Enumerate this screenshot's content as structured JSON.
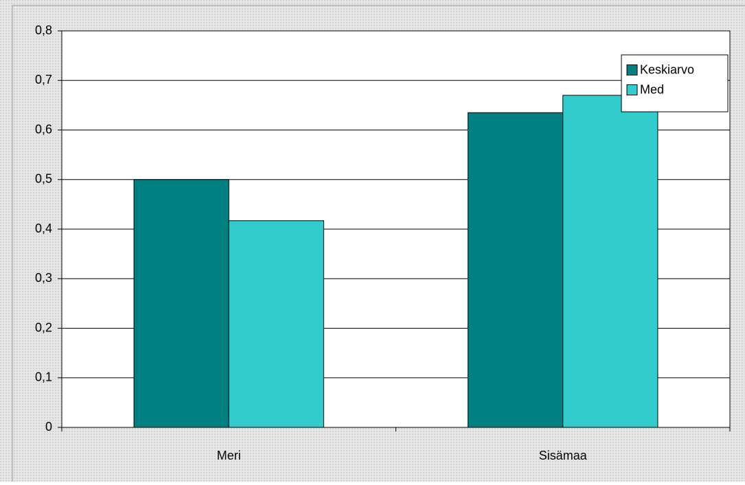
{
  "chart_data": {
    "type": "bar",
    "categories": [
      "Meri",
      "Sisämaa"
    ],
    "series": [
      {
        "name": "Keskiarvo",
        "color": "#008080",
        "values": [
          0.5,
          0.635
        ]
      },
      {
        "name": "Med",
        "color": "#33cccc",
        "values": [
          0.417,
          0.67
        ]
      }
    ],
    "ylim": [
      0,
      0.8
    ],
    "yticks": [
      0,
      {
        "value": 0.1,
        "label": "0,1"
      },
      {
        "value": 0.2,
        "label": "0,2"
      },
      {
        "value": 0.3,
        "label": "0,3"
      },
      {
        "value": 0.4,
        "label": "0,4"
      },
      {
        "value": 0.5,
        "label": "0,5"
      },
      {
        "value": 0.6,
        "label": "0,6"
      },
      {
        "value": 0.7,
        "label": "0,7"
      },
      {
        "value": 0.8,
        "label": "0,8"
      }
    ],
    "grid": true,
    "legend": "top-right"
  }
}
